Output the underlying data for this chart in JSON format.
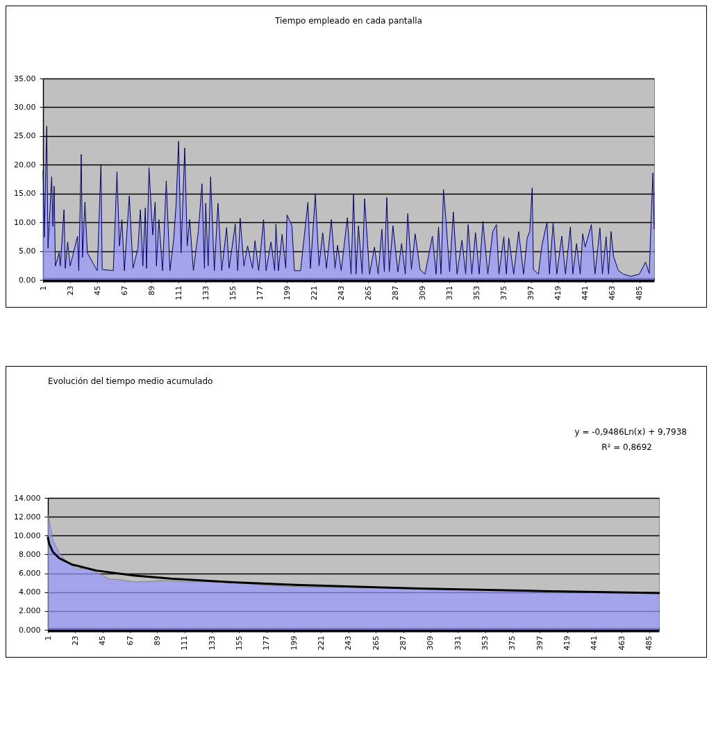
{
  "chart_data": [
    {
      "type": "area",
      "title": "Tiempo empleado en cada pantalla",
      "xlim": [
        1,
        497
      ],
      "ylim": [
        0,
        35
      ],
      "xticks": [
        1,
        23,
        45,
        67,
        89,
        111,
        133,
        155,
        177,
        199,
        221,
        243,
        265,
        287,
        309,
        331,
        353,
        375,
        397,
        419,
        441,
        463,
        485
      ],
      "yticks": [
        {
          "value": 0,
          "label": "0.00"
        },
        {
          "value": 5,
          "label": "5.00"
        },
        {
          "value": 10,
          "label": "10.00"
        },
        {
          "value": 15,
          "label": "15.00"
        },
        {
          "value": 20,
          "label": "20.00"
        },
        {
          "value": 25,
          "label": "25.00"
        },
        {
          "value": 30,
          "label": "30.00"
        },
        {
          "value": 35,
          "label": "35.00"
        }
      ],
      "grid": "y",
      "series": [
        {
          "color": "#9999ff",
          "x": [
            1,
            2,
            4,
            5,
            8,
            9,
            10,
            11,
            14,
            15,
            18,
            19,
            21,
            23,
            29,
            30,
            32,
            33,
            35,
            37,
            40,
            45,
            48,
            49,
            58,
            61,
            63,
            65,
            67,
            71,
            74,
            78,
            80,
            82,
            84,
            85,
            87,
            90,
            92,
            93,
            95,
            98,
            101,
            104,
            107,
            109,
            111,
            113,
            116,
            118,
            120,
            123,
            127,
            130,
            132,
            133,
            135,
            137,
            140,
            143,
            146,
            150,
            152,
            157,
            159,
            161,
            164,
            167,
            171,
            173,
            176,
            180,
            182,
            186,
            189,
            190,
            192,
            195,
            198,
            199,
            203,
            205,
            210,
            216,
            218,
            222,
            225,
            228,
            231,
            235,
            238,
            240,
            243,
            248,
            251,
            253,
            255,
            257,
            260,
            262,
            266,
            270,
            273,
            276,
            278,
            280,
            282,
            285,
            289,
            292,
            295,
            297,
            300,
            303,
            307,
            311,
            317,
            320,
            322,
            324,
            326,
            328,
            331,
            334,
            337,
            341,
            344,
            346,
            349,
            352,
            355,
            358,
            362,
            366,
            369,
            371,
            375,
            377,
            379,
            383,
            387,
            391,
            394,
            396,
            398,
            399,
            403,
            406,
            410,
            412,
            415,
            418,
            422,
            425,
            429,
            431,
            434,
            437,
            439,
            441,
            446,
            449,
            453,
            455,
            458,
            460,
            462,
            464,
            468,
            472,
            478,
            485,
            490,
            493,
            495,
            496,
            497
          ],
          "values": [
            19.0,
            7.4,
            26.7,
            5.5,
            17.9,
            9.3,
            16.3,
            2.4,
            4.7,
            2.4,
            12.2,
            2.0,
            6.6,
            2.4,
            7.6,
            1.6,
            21.8,
            3.9,
            13.5,
            4.7,
            3.5,
            1.6,
            20.1,
            1.8,
            1.6,
            18.8,
            5.9,
            10.5,
            1.6,
            14.6,
            2.0,
            5.5,
            12.2,
            2.4,
            12.5,
            2.0,
            19.5,
            7.8,
            13.5,
            2.4,
            10.5,
            1.6,
            17.2,
            1.6,
            7.0,
            13.2,
            24.1,
            4.7,
            22.9,
            5.9,
            10.5,
            1.6,
            8.4,
            16.7,
            2.0,
            13.3,
            2.4,
            17.9,
            1.6,
            13.3,
            1.6,
            9.1,
            2.0,
            9.7,
            1.6,
            10.7,
            2.4,
            5.9,
            2.0,
            6.8,
            1.6,
            10.5,
            1.6,
            6.6,
            1.6,
            9.7,
            1.6,
            7.9,
            2.0,
            11.3,
            9.4,
            1.6,
            1.6,
            13.5,
            2.0,
            14.8,
            2.4,
            8.2,
            2.0,
            10.5,
            2.0,
            6.0,
            1.6,
            10.8,
            1.0,
            14.8,
            1.0,
            9.4,
            1.0,
            14.1,
            1.0,
            5.7,
            1.0,
            8.8,
            1.4,
            14.3,
            1.4,
            9.4,
            1.4,
            6.3,
            1.0,
            11.5,
            1.8,
            8.0,
            1.8,
            1.0,
            7.6,
            1.0,
            9.2,
            1.0,
            15.7,
            10.4,
            1.4,
            11.8,
            1.0,
            6.9,
            1.0,
            9.6,
            1.0,
            8.2,
            1.0,
            10.2,
            1.0,
            8.4,
            9.6,
            1.0,
            7.5,
            1.0,
            7.3,
            1.0,
            8.4,
            1.0,
            7.3,
            8.4,
            16.0,
            1.8,
            1.0,
            6.1,
            10.0,
            1.0,
            10.0,
            1.0,
            7.6,
            1.0,
            9.2,
            1.0,
            6.3,
            1.0,
            8.0,
            5.7,
            9.6,
            1.0,
            9.0,
            1.0,
            7.5,
            1.0,
            8.4,
            4.1,
            1.6,
            1.0,
            0.6,
            1.0,
            3.1,
            1.1,
            13.1,
            18.6,
            8.8
          ]
        }
      ]
    },
    {
      "type": "area",
      "title": "Evolución del tiempo medio acumulado",
      "xlim": [
        1,
        493
      ],
      "ylim": [
        0,
        14
      ],
      "xticks": [
        1,
        23,
        45,
        67,
        89,
        111,
        133,
        155,
        177,
        199,
        221,
        243,
        265,
        287,
        309,
        331,
        353,
        375,
        397,
        419,
        441,
        463,
        485
      ],
      "yticks": [
        {
          "value": 0,
          "label": "0.000"
        },
        {
          "value": 2,
          "label": "2.000"
        },
        {
          "value": 4,
          "label": "4.000"
        },
        {
          "value": 6,
          "label": "6.000"
        },
        {
          "value": 8,
          "label": "8.000"
        },
        {
          "value": 10,
          "label": "10.000"
        },
        {
          "value": 12,
          "label": "12.000"
        },
        {
          "value": 14,
          "label": "14.000"
        }
      ],
      "grid": "y",
      "annotations": [
        "y = -0,9486Ln(x) + 9,7938",
        "R² = 0,8692"
      ],
      "series": [
        {
          "color": "#9999ff",
          "x": [
            1,
            3,
            5,
            10,
            15,
            20,
            25,
            30,
            40,
            45,
            50,
            60,
            70,
            80,
            90,
            100,
            110,
            130,
            150,
            180,
            200,
            220,
            250,
            300,
            350,
            400,
            450,
            493
          ],
          "values": [
            12.2,
            11.0,
            9.5,
            8.2,
            7.4,
            6.9,
            6.4,
            6.6,
            6.1,
            5.8,
            5.4,
            5.3,
            5.1,
            5.1,
            5.2,
            5.2,
            5.1,
            5.1,
            5.0,
            4.7,
            4.6,
            4.5,
            4.5,
            4.35,
            4.25,
            4.15,
            4.05,
            3.9
          ]
        },
        {
          "type": "line",
          "color": "#000000",
          "x": [
            1,
            2,
            5,
            10,
            20,
            40,
            70,
            100,
            150,
            200,
            300,
            400,
            493
          ],
          "values": [
            9.79,
            9.14,
            8.27,
            7.61,
            6.95,
            6.29,
            5.76,
            5.43,
            5.04,
            4.77,
            4.38,
            4.11,
            3.91
          ]
        }
      ]
    }
  ]
}
